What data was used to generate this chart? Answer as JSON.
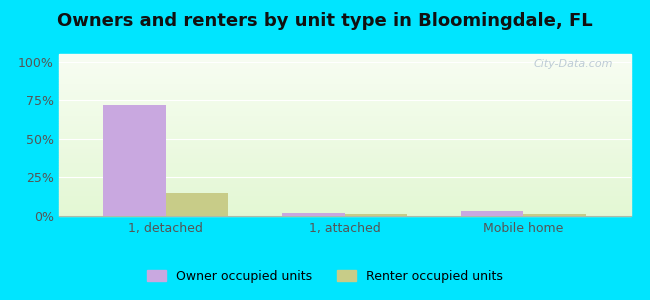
{
  "title": "Owners and renters by unit type in Bloomingdale, FL",
  "categories": [
    "1, detached",
    "1, attached",
    "Mobile home"
  ],
  "owner_values": [
    72,
    2,
    3
  ],
  "renter_values": [
    15,
    1,
    1
  ],
  "owner_color": "#c9a8e0",
  "renter_color": "#c8cc88",
  "yticks": [
    0,
    25,
    50,
    75,
    100
  ],
  "ytick_labels": [
    "0%",
    "25%",
    "50%",
    "75%",
    "100%"
  ],
  "ylim": [
    0,
    105
  ],
  "legend_owner": "Owner occupied units",
  "legend_renter": "Renter occupied units",
  "outer_bg": "#00e5ff",
  "watermark": "City-Data.com",
  "bar_width": 0.35,
  "title_fontsize": 13,
  "axis_fontsize": 9,
  "legend_fontsize": 9,
  "grid_color": "#ccddcc",
  "spine_color": "#aabbaa"
}
